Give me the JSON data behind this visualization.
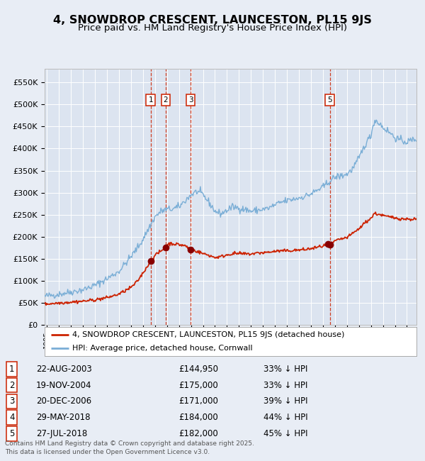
{
  "title": "4, SNOWDROP CRESCENT, LAUNCESTON, PL15 9JS",
  "subtitle": "Price paid vs. HM Land Registry's House Price Index (HPI)",
  "title_fontsize": 11.5,
  "subtitle_fontsize": 9.5,
  "background_color": "#e8edf5",
  "plot_bg_color": "#dce4f0",
  "legend_line1": "4, SNOWDROP CRESCENT, LAUNCESTON, PL15 9JS (detached house)",
  "legend_line2": "HPI: Average price, detached house, Cornwall",
  "footer": "Contains HM Land Registry data © Crown copyright and database right 2025.\nThis data is licensed under the Open Government Licence v3.0.",
  "transactions": [
    {
      "label": "1",
      "date": "22-AUG-2003",
      "price": 144950,
      "pct": "33%",
      "dir": "↓",
      "x": 2003.64,
      "show_vline": true
    },
    {
      "label": "2",
      "date": "19-NOV-2004",
      "price": 175000,
      "pct": "33%",
      "dir": "↓",
      "x": 2004.89,
      "show_vline": true
    },
    {
      "label": "3",
      "date": "20-DEC-2006",
      "price": 171000,
      "pct": "39%",
      "dir": "↓",
      "x": 2006.97,
      "show_vline": true
    },
    {
      "label": "4",
      "date": "29-MAY-2018",
      "price": 184000,
      "pct": "44%",
      "dir": "↓",
      "x": 2018.41,
      "show_vline": false
    },
    {
      "label": "5",
      "date": "27-JUL-2018",
      "price": 182000,
      "pct": "45%",
      "dir": "↓",
      "x": 2018.57,
      "show_vline": true
    }
  ],
  "hpi_color": "#7aaed6",
  "price_color": "#cc2200",
  "vline_color": "#cc2200",
  "marker_color": "#880000",
  "ylim": [
    0,
    580000
  ],
  "xlim": [
    1994.8,
    2025.8
  ],
  "yticks": [
    0,
    50000,
    100000,
    150000,
    200000,
    250000,
    300000,
    350000,
    400000,
    450000,
    500000,
    550000
  ],
  "ytick_labels": [
    "£0",
    "£50K",
    "£100K",
    "£150K",
    "£200K",
    "£250K",
    "£300K",
    "£350K",
    "£400K",
    "£450K",
    "£500K",
    "£550K"
  ]
}
